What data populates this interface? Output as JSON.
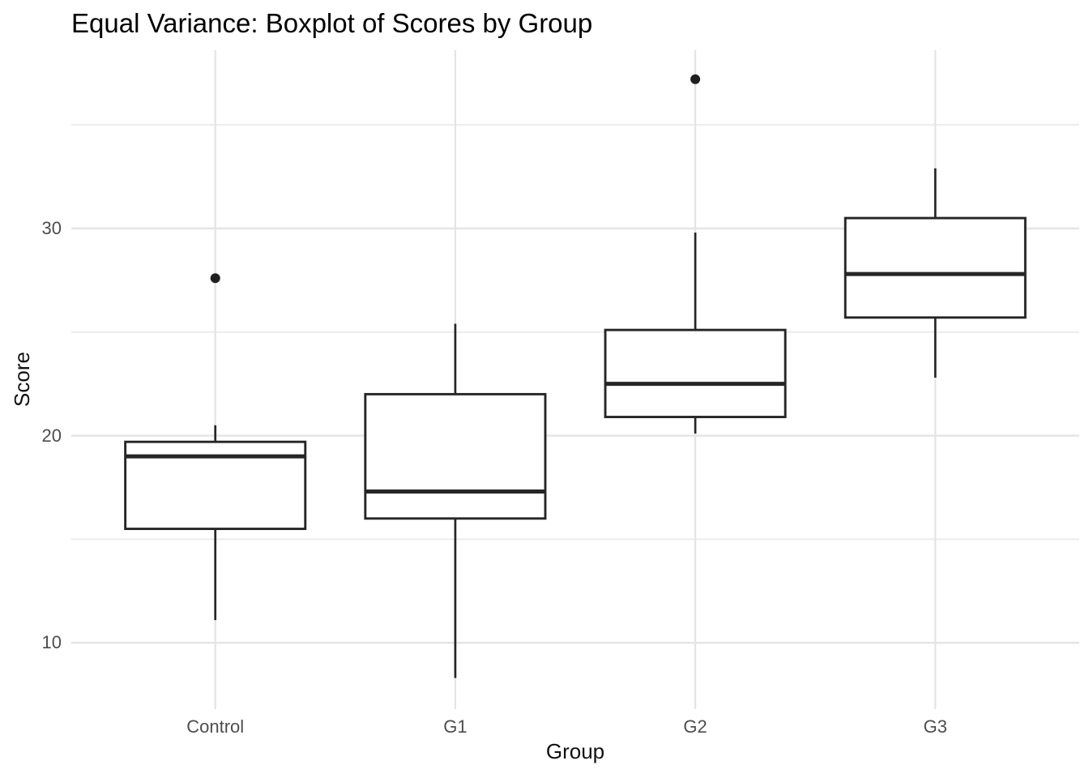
{
  "chart_data": {
    "type": "boxplot",
    "title": "Equal Variance: Boxplot of Scores by Group",
    "xlabel": "Group",
    "ylabel": "Score",
    "categories": [
      "Control",
      "G1",
      "G2",
      "G3"
    ],
    "ylim": [
      6.8,
      38.6
    ],
    "xlim": [
      0.4,
      4.6
    ],
    "yticks": [
      10,
      20,
      30
    ],
    "y_minor_gridlines": [
      15,
      25,
      35
    ],
    "box_width": 0.75,
    "grid": "horizontal major + minor, vertical at group centers, light gray on white",
    "legend": "none",
    "groups": [
      {
        "name": "Control",
        "whisker_low": 11.1,
        "q1": 15.5,
        "median": 19.0,
        "q3": 19.7,
        "whisker_high": 20.5,
        "outliers": [
          27.6
        ]
      },
      {
        "name": "G1",
        "whisker_low": 8.3,
        "q1": 16.0,
        "median": 17.3,
        "q3": 22.0,
        "whisker_high": 25.4,
        "outliers": []
      },
      {
        "name": "G2",
        "whisker_low": 20.1,
        "q1": 20.9,
        "median": 22.5,
        "q3": 25.1,
        "whisker_high": 29.8,
        "outliers": [
          37.2
        ]
      },
      {
        "name": "G3",
        "whisker_low": 22.8,
        "q1": 25.7,
        "median": 27.8,
        "q3": 30.5,
        "whisker_high": 32.9,
        "outliers": []
      }
    ],
    "colors": {
      "box_stroke": "#262626",
      "outlier": "#1f1f1f",
      "grid_major": "#e4e4e4",
      "grid_minor": "#ececec",
      "tick_label": "#4d4d4d",
      "axis_title": "#111111",
      "title": "#000000",
      "background": "#ffffff"
    }
  }
}
